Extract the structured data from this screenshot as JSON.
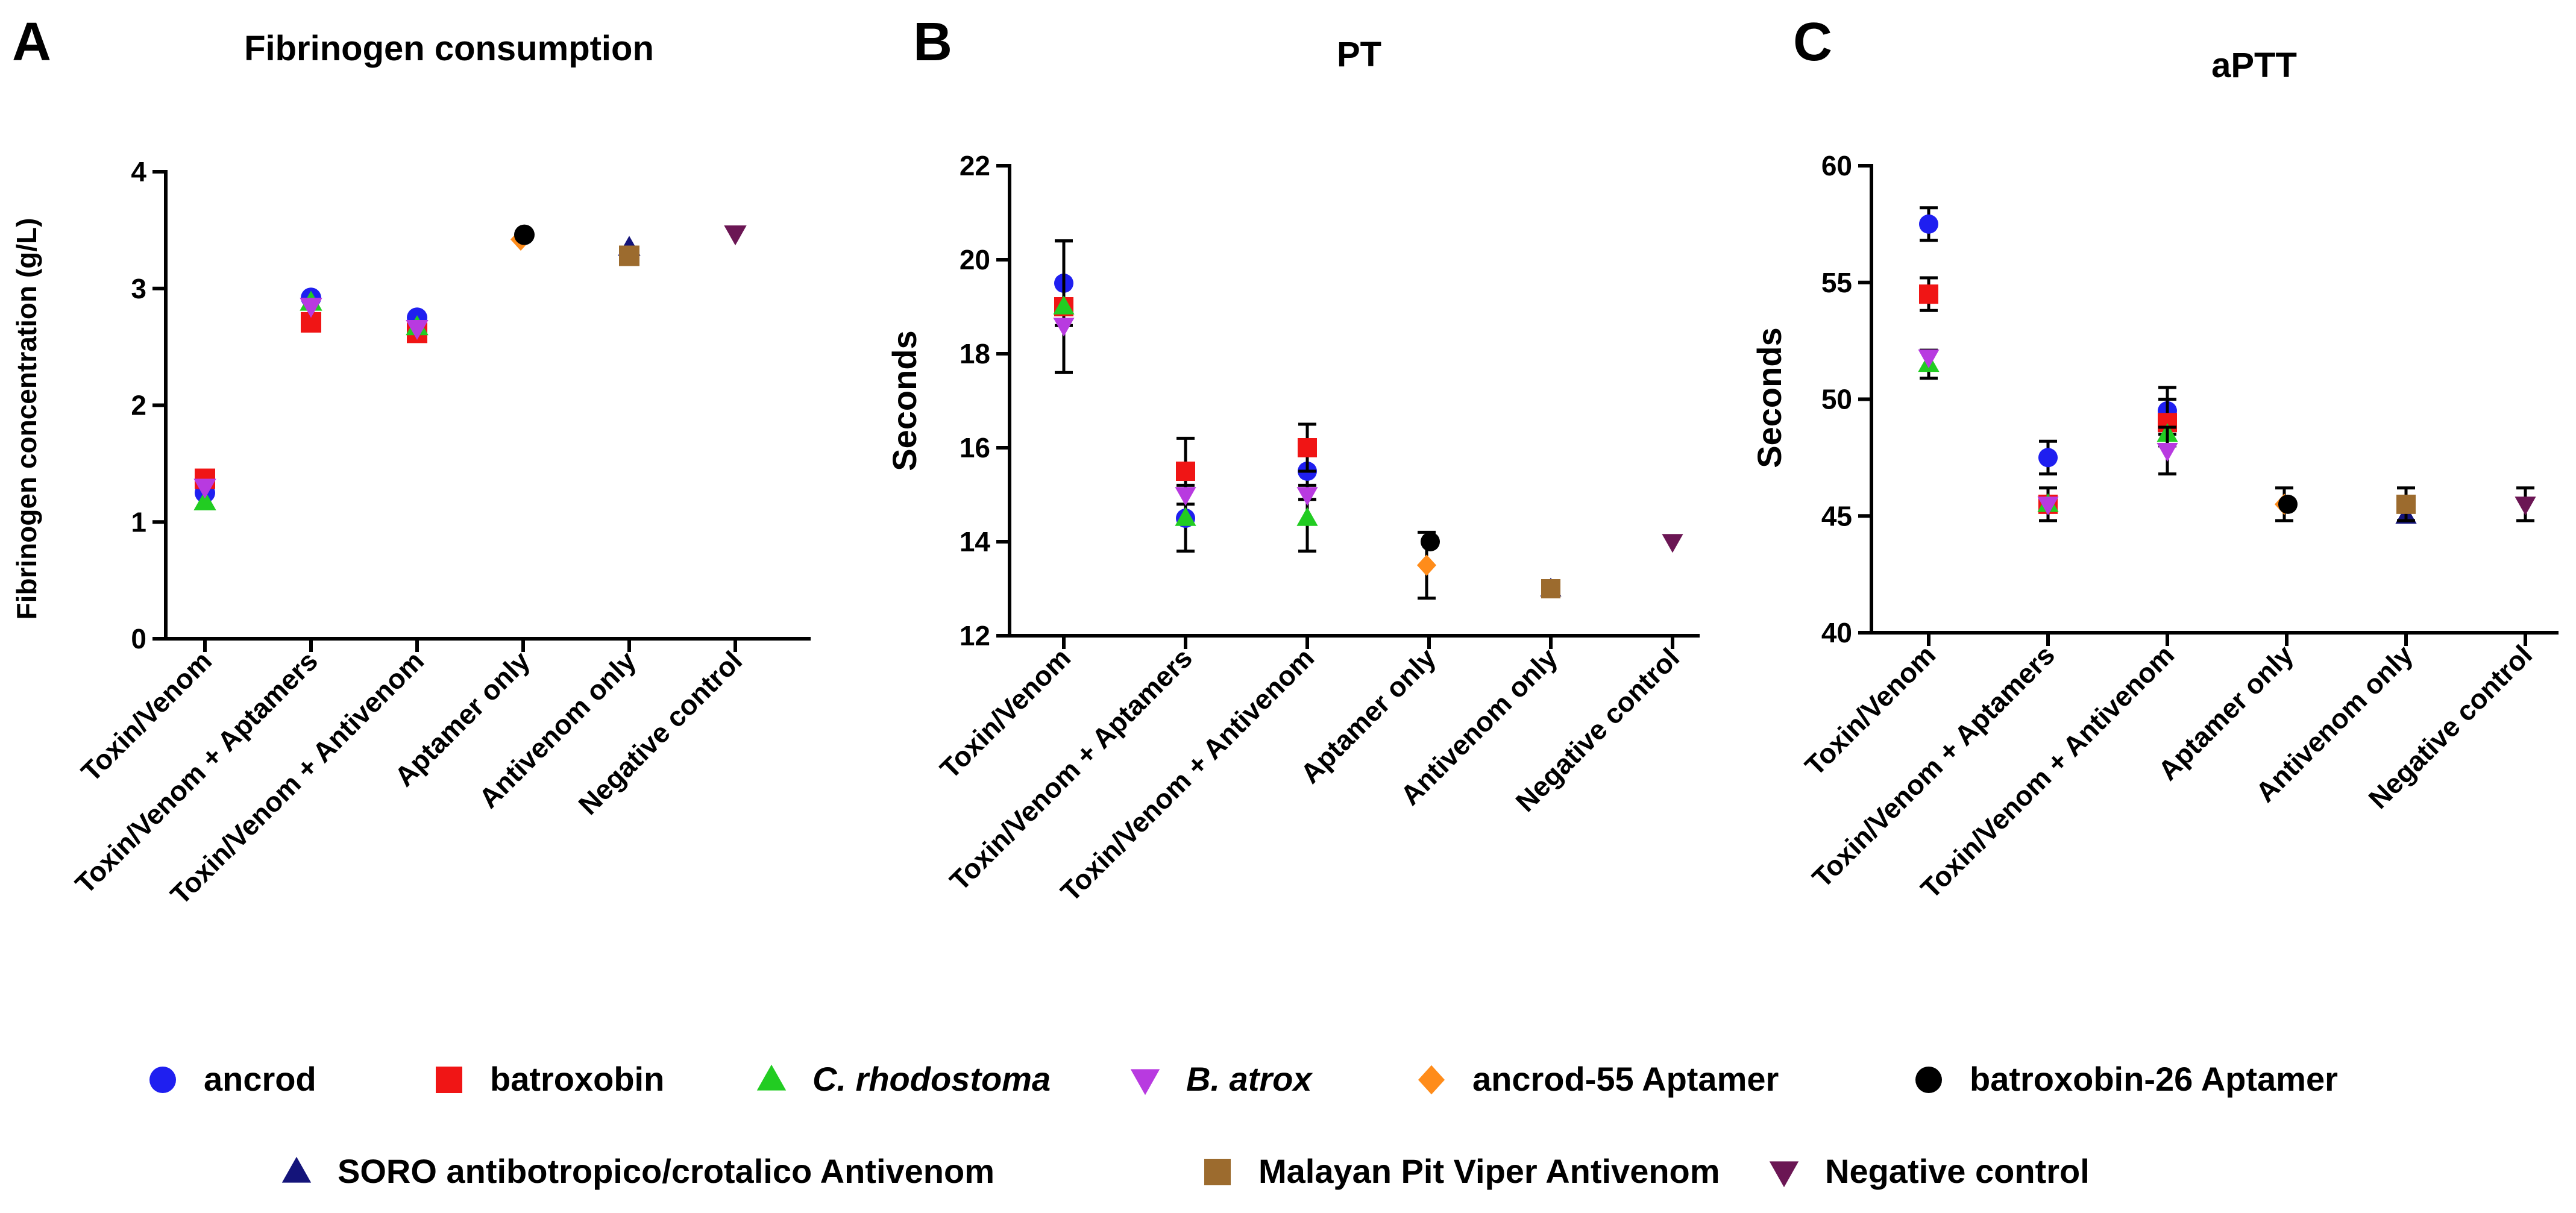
{
  "colors": {
    "ancrod": "#1f1ff0",
    "batroxobin": "#f01515",
    "rhodostoma": "#22cc22",
    "atrox": "#b83ae0",
    "ancrod55": "#ff8c1a",
    "batroxobin26": "#000000",
    "soro": "#14147a",
    "malayan": "#9c6b2e",
    "negative": "#6b1654"
  },
  "legend": {
    "items": [
      {
        "key": "ancrod",
        "label": "ancrod",
        "marker": "circle",
        "italic": false
      },
      {
        "key": "batroxobin",
        "label": "batroxobin",
        "marker": "square",
        "italic": false
      },
      {
        "key": "rhodostoma",
        "label": "C. rhodostoma",
        "marker": "triangle-up",
        "italic": true
      },
      {
        "key": "atrox",
        "label": "B. atrox",
        "marker": "triangle-down",
        "italic": true
      },
      {
        "key": "ancrod55",
        "label": "ancrod-55 Aptamer",
        "marker": "diamond",
        "italic": false
      },
      {
        "key": "batroxobin26",
        "label": "batroxobin-26 Aptamer",
        "marker": "circle",
        "italic": false
      },
      {
        "key": "soro",
        "label": "SORO antibotropico/crotalico Antivenom",
        "marker": "triangle-up",
        "italic": false
      },
      {
        "key": "malayan",
        "label": "Malayan Pit Viper Antivenom",
        "marker": "square",
        "italic": false
      },
      {
        "key": "negative",
        "label": "Negative control",
        "marker": "triangle-down",
        "italic": false
      }
    ]
  },
  "chart_data": [
    {
      "type": "scatter",
      "panel": "A",
      "title": "Fibrinogen consumption",
      "xlabel": "",
      "ylabel": "Fibrinogen concentration (g/L)",
      "ylim": [
        0,
        4
      ],
      "yticks": [
        0,
        1,
        2,
        3,
        4
      ],
      "categories": [
        "Toxin/Venom",
        "Toxin/Venom + Aptamers",
        "Toxin/Venom + Antivenom",
        "Aptamer only",
        "Antivenom only",
        "Negative control"
      ],
      "series": [
        {
          "key": "ancrod",
          "points": [
            {
              "cat": 0,
              "y": 1.25
            },
            {
              "cat": 1,
              "y": 2.92
            },
            {
              "cat": 2,
              "y": 2.75
            }
          ]
        },
        {
          "key": "batroxobin",
          "points": [
            {
              "cat": 0,
              "y": 1.37
            },
            {
              "cat": 1,
              "y": 2.71
            },
            {
              "cat": 2,
              "y": 2.62
            }
          ]
        },
        {
          "key": "rhodostoma",
          "points": [
            {
              "cat": 0,
              "y": 1.17
            },
            {
              "cat": 1,
              "y": 2.88
            },
            {
              "cat": 2,
              "y": 2.67
            }
          ]
        },
        {
          "key": "atrox",
          "points": [
            {
              "cat": 0,
              "y": 1.3
            },
            {
              "cat": 1,
              "y": 2.85
            },
            {
              "cat": 2,
              "y": 2.66
            }
          ]
        },
        {
          "key": "ancrod55",
          "points": [
            {
              "cat": 3,
              "y": 3.42
            }
          ]
        },
        {
          "key": "batroxobin26",
          "points": [
            {
              "cat": 3,
              "y": 3.46
            }
          ]
        },
        {
          "key": "soro",
          "points": [
            {
              "cat": 4,
              "y": 3.35
            }
          ]
        },
        {
          "key": "malayan",
          "points": [
            {
              "cat": 4,
              "y": 3.28
            }
          ]
        },
        {
          "key": "negative",
          "points": [
            {
              "cat": 5,
              "y": 3.47
            }
          ]
        }
      ]
    },
    {
      "type": "scatter",
      "panel": "B",
      "title": "PT",
      "xlabel": "",
      "ylabel": "Seconds",
      "ylim": [
        12,
        22
      ],
      "yticks": [
        12,
        14,
        16,
        18,
        20,
        22
      ],
      "categories": [
        "Toxin/Venom",
        "Toxin/Venom + Aptamers",
        "Toxin/Venom + Antivenom",
        "Aptamer only",
        "Antivenom only",
        "Negative control"
      ],
      "series": [
        {
          "key": "ancrod",
          "points": [
            {
              "cat": 0,
              "y": 19.5,
              "err": 0.9
            },
            {
              "cat": 1,
              "y": 14.5,
              "err": 0.7
            },
            {
              "cat": 2,
              "y": 15.5,
              "err": 0.6
            }
          ]
        },
        {
          "key": "batroxobin",
          "points": [
            {
              "cat": 0,
              "y": 19.0,
              "err": 1.4
            },
            {
              "cat": 1,
              "y": 15.5,
              "err": 0.7
            },
            {
              "cat": 2,
              "y": 16.0,
              "err": 0.5
            }
          ]
        },
        {
          "key": "rhodostoma",
          "points": [
            {
              "cat": 0,
              "y": 19.0
            },
            {
              "cat": 1,
              "y": 14.5
            },
            {
              "cat": 2,
              "y": 14.5,
              "err": 0.7
            }
          ]
        },
        {
          "key": "atrox",
          "points": [
            {
              "cat": 0,
              "y": 18.6
            },
            {
              "cat": 1,
              "y": 15.0
            },
            {
              "cat": 2,
              "y": 15.0
            }
          ]
        },
        {
          "key": "ancrod55",
          "points": [
            {
              "cat": 3,
              "y": 13.5,
              "err": 0.7
            }
          ]
        },
        {
          "key": "batroxobin26",
          "points": [
            {
              "cat": 3,
              "y": 14.0
            }
          ]
        },
        {
          "key": "soro",
          "points": [
            {
              "cat": 4,
              "y": 13.0
            }
          ]
        },
        {
          "key": "malayan",
          "points": [
            {
              "cat": 4,
              "y": 13.0
            }
          ]
        },
        {
          "key": "negative",
          "points": [
            {
              "cat": 5,
              "y": 14.0
            }
          ]
        }
      ]
    },
    {
      "type": "scatter",
      "panel": "C",
      "title": "aPTT",
      "xlabel": "",
      "ylabel": "Seconds",
      "ylim": [
        40,
        60
      ],
      "yticks": [
        40,
        45,
        50,
        55,
        60
      ],
      "categories": [
        "Toxin/Venom",
        "Toxin/Venom + Aptamers",
        "Toxin/Venom + Antivenom",
        "Aptamer only",
        "Antivenom only",
        "Negative control"
      ],
      "series": [
        {
          "key": "ancrod",
          "points": [
            {
              "cat": 0,
              "y": 57.5,
              "err": 0.7
            },
            {
              "cat": 1,
              "y": 47.5,
              "err": 0.7
            },
            {
              "cat": 2,
              "y": 49.5,
              "err": 1.0
            }
          ]
        },
        {
          "key": "batroxobin",
          "points": [
            {
              "cat": 0,
              "y": 54.5,
              "err": 0.7
            },
            {
              "cat": 1,
              "y": 45.5,
              "err": 0.7
            },
            {
              "cat": 2,
              "y": 49.0,
              "err": 1.0
            }
          ]
        },
        {
          "key": "rhodostoma",
          "points": [
            {
              "cat": 0,
              "y": 51.5,
              "err": 0.6
            },
            {
              "cat": 1,
              "y": 45.5
            },
            {
              "cat": 2,
              "y": 48.5
            }
          ]
        },
        {
          "key": "atrox",
          "points": [
            {
              "cat": 0,
              "y": 51.8
            },
            {
              "cat": 1,
              "y": 45.5
            },
            {
              "cat": 2,
              "y": 47.8,
              "err": 1.0
            }
          ]
        },
        {
          "key": "ancrod55",
          "points": [
            {
              "cat": 3,
              "y": 45.5,
              "err": 0.7
            }
          ]
        },
        {
          "key": "batroxobin26",
          "points": [
            {
              "cat": 3,
              "y": 45.5
            }
          ]
        },
        {
          "key": "soro",
          "points": [
            {
              "cat": 4,
              "y": 45.0
            }
          ]
        },
        {
          "key": "malayan",
          "points": [
            {
              "cat": 4,
              "y": 45.5,
              "err": 0.7
            }
          ]
        },
        {
          "key": "negative",
          "points": [
            {
              "cat": 5,
              "y": 45.5,
              "err": 0.7
            }
          ]
        }
      ]
    }
  ]
}
